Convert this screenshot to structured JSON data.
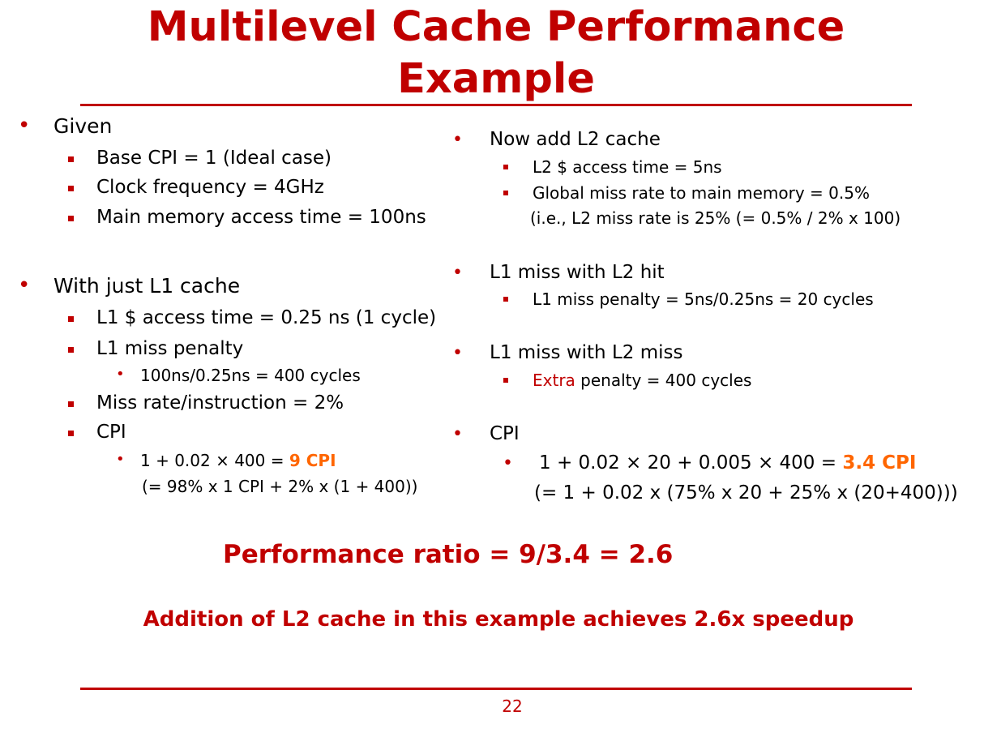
{
  "title": {
    "line1": "Multilevel Cache Performance",
    "line2": "Example"
  },
  "left": {
    "given": {
      "heading": "Given",
      "items": [
        "Base CPI = 1 (Ideal case)",
        "Clock frequency = 4GHz",
        "Main memory access time = 100ns"
      ]
    },
    "l1only": {
      "heading": "With just L1 cache",
      "access_time": "L1 $ access time = 0.25 ns (1 cycle)",
      "miss_penalty": "L1 miss penalty",
      "miss_penalty_calc": "100ns/0.25ns = 400 cycles",
      "miss_rate": "Miss rate/instruction = 2%",
      "cpi_label": "CPI",
      "cpi_formula": "1 + 0.02 × 400 = ",
      "cpi_result": "9 CPI",
      "cpi_explain": "(= 98% x 1 CPI + 2% x (1 + 400))"
    }
  },
  "right": {
    "addl2": {
      "heading": "Now add L2 cache",
      "access_time": "L2 $ access time = 5ns",
      "global_miss": "Global miss rate to main memory = 0.5%",
      "global_miss_note": "(i.e., L2 miss rate is 25% (= 0.5% / 2% x 100)"
    },
    "l2hit": {
      "heading": "L1 miss with L2 hit",
      "penalty": "L1 miss penalty = 5ns/0.25ns = 20 cycles"
    },
    "l2miss": {
      "heading": "L1 miss with L2 miss",
      "extra_word": "Extra",
      "penalty_rest": " penalty = 400 cycles"
    },
    "cpi": {
      "heading": "CPI",
      "formula": "1 + 0.02 × 20 + 0.005 × 400 = ",
      "result": "3.4 CPI",
      "explain": "(= 1 + 0.02 x (75% x 20 + 25% x (20+400)))"
    }
  },
  "ratio": "Performance ratio = 9/3.4 = 2.6",
  "conclusion": "Addition of L2 cache in this example achieves 2.6x speedup",
  "page_number": "22",
  "colors": {
    "accent": "#c00000",
    "highlight": "#ff6600"
  }
}
